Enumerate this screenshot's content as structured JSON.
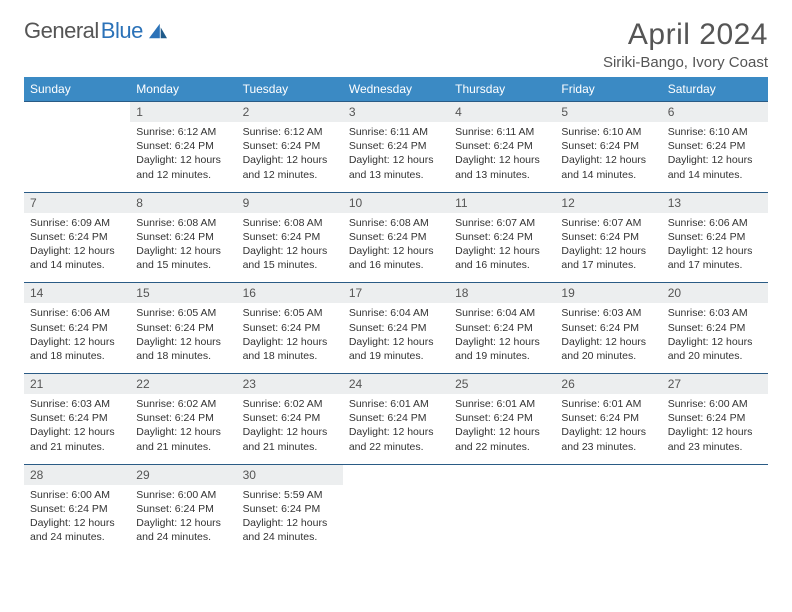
{
  "brand": {
    "word1": "General",
    "word2": "Blue"
  },
  "title": "April 2024",
  "location": "Siriki-Bango, Ivory Coast",
  "weekdays": [
    "Sunday",
    "Monday",
    "Tuesday",
    "Wednesday",
    "Thursday",
    "Friday",
    "Saturday"
  ],
  "colors": {
    "header_bg": "#3b8ac4",
    "header_text": "#ffffff",
    "daynum_bg": "#eceeef",
    "rule": "#2a5b85",
    "brand_gray": "#555555",
    "brand_blue": "#2b72b8"
  },
  "weeks": [
    [
      null,
      {
        "n": "1",
        "sr": "6:12 AM",
        "ss": "6:24 PM",
        "dl": "12 hours and 12 minutes."
      },
      {
        "n": "2",
        "sr": "6:12 AM",
        "ss": "6:24 PM",
        "dl": "12 hours and 12 minutes."
      },
      {
        "n": "3",
        "sr": "6:11 AM",
        "ss": "6:24 PM",
        "dl": "12 hours and 13 minutes."
      },
      {
        "n": "4",
        "sr": "6:11 AM",
        "ss": "6:24 PM",
        "dl": "12 hours and 13 minutes."
      },
      {
        "n": "5",
        "sr": "6:10 AM",
        "ss": "6:24 PM",
        "dl": "12 hours and 14 minutes."
      },
      {
        "n": "6",
        "sr": "6:10 AM",
        "ss": "6:24 PM",
        "dl": "12 hours and 14 minutes."
      }
    ],
    [
      {
        "n": "7",
        "sr": "6:09 AM",
        "ss": "6:24 PM",
        "dl": "12 hours and 14 minutes."
      },
      {
        "n": "8",
        "sr": "6:08 AM",
        "ss": "6:24 PM",
        "dl": "12 hours and 15 minutes."
      },
      {
        "n": "9",
        "sr": "6:08 AM",
        "ss": "6:24 PM",
        "dl": "12 hours and 15 minutes."
      },
      {
        "n": "10",
        "sr": "6:08 AM",
        "ss": "6:24 PM",
        "dl": "12 hours and 16 minutes."
      },
      {
        "n": "11",
        "sr": "6:07 AM",
        "ss": "6:24 PM",
        "dl": "12 hours and 16 minutes."
      },
      {
        "n": "12",
        "sr": "6:07 AM",
        "ss": "6:24 PM",
        "dl": "12 hours and 17 minutes."
      },
      {
        "n": "13",
        "sr": "6:06 AM",
        "ss": "6:24 PM",
        "dl": "12 hours and 17 minutes."
      }
    ],
    [
      {
        "n": "14",
        "sr": "6:06 AM",
        "ss": "6:24 PM",
        "dl": "12 hours and 18 minutes."
      },
      {
        "n": "15",
        "sr": "6:05 AM",
        "ss": "6:24 PM",
        "dl": "12 hours and 18 minutes."
      },
      {
        "n": "16",
        "sr": "6:05 AM",
        "ss": "6:24 PM",
        "dl": "12 hours and 18 minutes."
      },
      {
        "n": "17",
        "sr": "6:04 AM",
        "ss": "6:24 PM",
        "dl": "12 hours and 19 minutes."
      },
      {
        "n": "18",
        "sr": "6:04 AM",
        "ss": "6:24 PM",
        "dl": "12 hours and 19 minutes."
      },
      {
        "n": "19",
        "sr": "6:03 AM",
        "ss": "6:24 PM",
        "dl": "12 hours and 20 minutes."
      },
      {
        "n": "20",
        "sr": "6:03 AM",
        "ss": "6:24 PM",
        "dl": "12 hours and 20 minutes."
      }
    ],
    [
      {
        "n": "21",
        "sr": "6:03 AM",
        "ss": "6:24 PM",
        "dl": "12 hours and 21 minutes."
      },
      {
        "n": "22",
        "sr": "6:02 AM",
        "ss": "6:24 PM",
        "dl": "12 hours and 21 minutes."
      },
      {
        "n": "23",
        "sr": "6:02 AM",
        "ss": "6:24 PM",
        "dl": "12 hours and 21 minutes."
      },
      {
        "n": "24",
        "sr": "6:01 AM",
        "ss": "6:24 PM",
        "dl": "12 hours and 22 minutes."
      },
      {
        "n": "25",
        "sr": "6:01 AM",
        "ss": "6:24 PM",
        "dl": "12 hours and 22 minutes."
      },
      {
        "n": "26",
        "sr": "6:01 AM",
        "ss": "6:24 PM",
        "dl": "12 hours and 23 minutes."
      },
      {
        "n": "27",
        "sr": "6:00 AM",
        "ss": "6:24 PM",
        "dl": "12 hours and 23 minutes."
      }
    ],
    [
      {
        "n": "28",
        "sr": "6:00 AM",
        "ss": "6:24 PM",
        "dl": "12 hours and 24 minutes."
      },
      {
        "n": "29",
        "sr": "6:00 AM",
        "ss": "6:24 PM",
        "dl": "12 hours and 24 minutes."
      },
      {
        "n": "30",
        "sr": "5:59 AM",
        "ss": "6:24 PM",
        "dl": "12 hours and 24 minutes."
      },
      null,
      null,
      null,
      null
    ]
  ],
  "labels": {
    "sunrise": "Sunrise: ",
    "sunset": "Sunset: ",
    "daylight": "Daylight: "
  }
}
